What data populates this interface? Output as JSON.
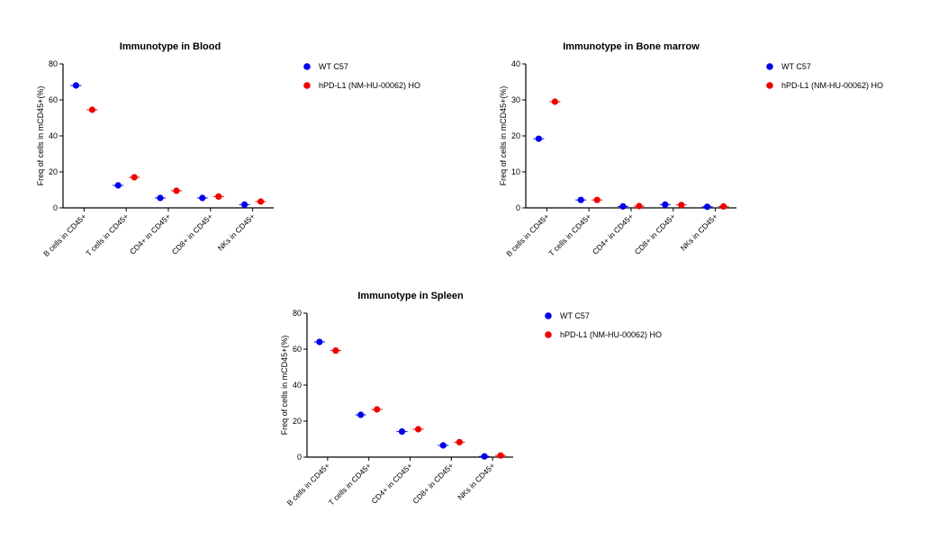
{
  "series_colors": {
    "WT C57": "#0000ee",
    "hPD-L1 (NM-HU-00062) HO": "#ee0000"
  },
  "chart_data": [
    {
      "type": "scatter",
      "title": "Immunotype in Blood",
      "ylabel": "Freq of cells in mCD45+(%)",
      "ylim": [
        0,
        80
      ],
      "yticks": [
        0,
        20,
        40,
        60,
        80
      ],
      "categories": [
        "B cells in CD45+",
        "T cells in CD45+",
        "CD4+ in CD45+",
        "CD8+ in CD45+",
        "NKs in CD45+"
      ],
      "legend_position": "right",
      "series": [
        {
          "name": "WT C57",
          "values": [
            68,
            12.5,
            5.5,
            5.5,
            1.8
          ]
        },
        {
          "name": "hPD-L1 (NM-HU-00062) HO",
          "values": [
            54.5,
            17,
            9.5,
            6.3,
            3.5
          ]
        }
      ]
    },
    {
      "type": "scatter",
      "title": "Immunotype in Bone marrow",
      "ylabel": "Freq of cells in mCD45+(%)",
      "ylim": [
        0,
        40
      ],
      "yticks": [
        0,
        10,
        20,
        30,
        40
      ],
      "categories": [
        "B cells in CD45+",
        "T cells in CD45+",
        "CD4+ in CD45+",
        "CD8+ in CD45+",
        "NKs in CD45+"
      ],
      "legend_position": "right",
      "series": [
        {
          "name": "WT C57",
          "values": [
            19.2,
            2.2,
            0.4,
            0.9,
            0.3
          ]
        },
        {
          "name": "hPD-L1 (NM-HU-00062) HO",
          "values": [
            29.5,
            2.2,
            0.5,
            0.8,
            0.4
          ]
        }
      ]
    },
    {
      "type": "scatter",
      "title": "Immunotype in Spleen",
      "ylabel": "Freq of cells in mCD45+(%)",
      "ylim": [
        0,
        80
      ],
      "yticks": [
        0,
        20,
        40,
        60,
        80
      ],
      "categories": [
        "B cells in CD45+",
        "T cells in CD45+",
        "CD4+ in CD45+",
        "CD8+ in CD45+",
        "NKs in CD45+"
      ],
      "legend_position": "right",
      "series": [
        {
          "name": "WT C57",
          "values": [
            64,
            23.5,
            14.2,
            6.5,
            0.4
          ]
        },
        {
          "name": "hPD-L1 (NM-HU-00062) HO",
          "values": [
            59.2,
            26.5,
            15.5,
            8.3,
            0.9
          ]
        }
      ]
    }
  ]
}
